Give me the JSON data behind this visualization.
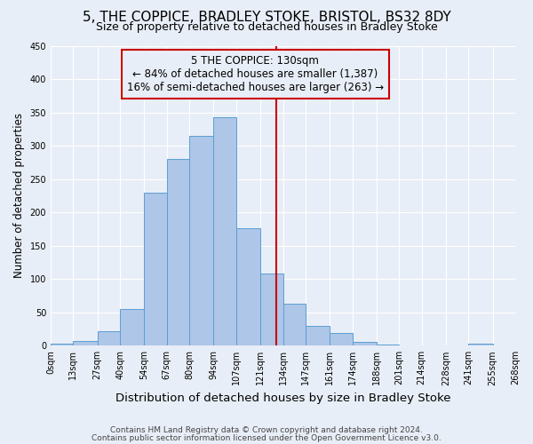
{
  "title": "5, THE COPPICE, BRADLEY STOKE, BRISTOL, BS32 8DY",
  "subtitle": "Size of property relative to detached houses in Bradley Stoke",
  "xlabel": "Distribution of detached houses by size in Bradley Stoke",
  "ylabel": "Number of detached properties",
  "footnote1": "Contains HM Land Registry data © Crown copyright and database right 2024.",
  "footnote2": "Contains public sector information licensed under the Open Government Licence v3.0.",
  "bin_labels": [
    "0sqm",
    "13sqm",
    "27sqm",
    "40sqm",
    "54sqm",
    "67sqm",
    "80sqm",
    "94sqm",
    "107sqm",
    "121sqm",
    "134sqm",
    "147sqm",
    "161sqm",
    "174sqm",
    "188sqm",
    "201sqm",
    "214sqm",
    "228sqm",
    "241sqm",
    "255sqm",
    "268sqm"
  ],
  "bin_edges": [
    0,
    13,
    27,
    40,
    54,
    67,
    80,
    94,
    107,
    121,
    134,
    147,
    161,
    174,
    188,
    201,
    214,
    228,
    241,
    255,
    268
  ],
  "bar_heights": [
    3,
    7,
    22,
    55,
    230,
    280,
    315,
    343,
    176,
    108,
    63,
    30,
    19,
    6,
    2,
    0,
    0,
    0,
    3,
    0
  ],
  "ylim": [
    0,
    450
  ],
  "yticks": [
    0,
    50,
    100,
    150,
    200,
    250,
    300,
    350,
    400,
    450
  ],
  "vline_x": 130,
  "vline_color": "#cc0000",
  "bar_facecolor": "#aec6e8",
  "bar_edgecolor": "#5a9fd4",
  "annotation_title": "5 THE COPPICE: 130sqm",
  "annotation_line1": "← 84% of detached houses are smaller (1,387)",
  "annotation_line2": "16% of semi-detached houses are larger (263) →",
  "annotation_box_color": "#cc0000",
  "bg_color": "#e8eef7",
  "grid_color": "#ffffff",
  "title_fontsize": 11,
  "subtitle_fontsize": 9,
  "xlabel_fontsize": 9.5,
  "ylabel_fontsize": 8.5,
  "tick_fontsize": 7,
  "annotation_fontsize": 8.5,
  "footnote_fontsize": 6.5
}
